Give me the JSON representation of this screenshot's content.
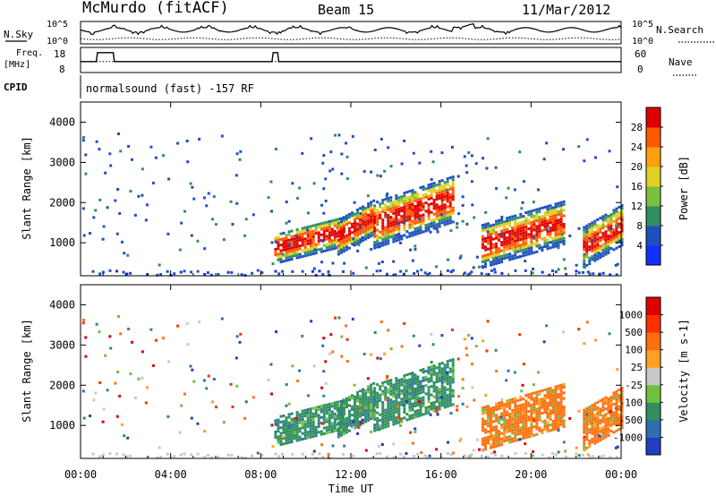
{
  "header": {
    "station": "McMurdo (fitACF)",
    "beam": "Beam 15",
    "date": "11/Mar/2012"
  },
  "strip_labels": {
    "nsky": "N.Sky",
    "freq_line1": "Freq.",
    "freq_line2": "[MHz]",
    "cpid": "CPID",
    "nsearch": "N.Search",
    "nave": "Nave",
    "left_ticks_top": "10^5",
    "left_ticks_bottom": "10^0",
    "right_ticks_top": "10^5",
    "right_ticks_bottom": "10^0",
    "freq_ticks": [
      "18",
      "8"
    ],
    "nave_ticks": [
      "60",
      "0"
    ],
    "cpid_text": "normalsound (fast) -157 RF"
  },
  "chart_data": [
    {
      "type": "heatmap",
      "name": "power",
      "ylabel": "Slant Range [km]",
      "xlabel": "",
      "y_ticks": [
        "1000",
        "2000",
        "3000",
        "4000"
      ],
      "ylim": [
        180,
        4500
      ],
      "colorbar": {
        "label": "Power [dB]",
        "ticks": [
          "4",
          "8",
          "12",
          "16",
          "20",
          "24",
          "28"
        ],
        "colors": [
          "#1030ff",
          "#2050c0",
          "#2f8f60",
          "#7cbf40",
          "#e0d020",
          "#ff9f10",
          "#ff5a00",
          "#e00000"
        ]
      },
      "echo_regions_hours_km": [
        {
          "x0": 8.6,
          "x1": 11.6,
          "y0": 650,
          "y1": 1500
        },
        {
          "x0": 11.4,
          "x1": 13.0,
          "y0": 900,
          "y1": 1900
        },
        {
          "x0": 13.0,
          "x1": 16.5,
          "y0": 1100,
          "y1": 2400
        },
        {
          "x0": 17.8,
          "x1": 21.5,
          "y0": 600,
          "y1": 1800
        },
        {
          "x0": 22.3,
          "x1": 24.0,
          "y0": 600,
          "y1": 1700
        }
      ]
    },
    {
      "type": "heatmap",
      "name": "velocity",
      "ylabel": "Slant Range [km]",
      "xlabel": "Time UT",
      "x_ticks": [
        "00:00",
        "04:00",
        "08:00",
        "12:00",
        "16:00",
        "20:00",
        "00:00"
      ],
      "xlim_hours": [
        0,
        24
      ],
      "y_ticks": [
        "1000",
        "2000",
        "3000",
        "4000"
      ],
      "ylim": [
        180,
        4500
      ],
      "colorbar": {
        "label": "Velocity [m s-1]",
        "ticks": [
          "1000",
          "500",
          "100",
          "25",
          "-25",
          "-100",
          "-500",
          "-1000"
        ],
        "colors": [
          "#2040c0",
          "#2f6fb0",
          "#2f8f60",
          "#70c040",
          "#c8c8c8",
          "#ffa020",
          "#ff7010",
          "#ff3000",
          "#e00000"
        ]
      }
    }
  ],
  "colors": {
    "echo_dominant_power": "#ff5a00",
    "echo_dominant_velocity_early": "#2f8f60",
    "echo_dominant_velocity_late": "#ff8a10"
  }
}
